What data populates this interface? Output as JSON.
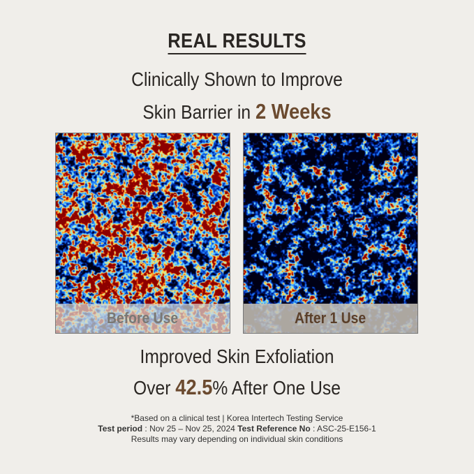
{
  "title": "REAL RESULTS",
  "headline": {
    "line1": "Clinically Shown to Improve",
    "line2_prefix": "Skin Barrier in ",
    "line2_highlight": "2 Weeks"
  },
  "images": {
    "before_label": "Before Use",
    "after_label": "After 1 Use"
  },
  "result": {
    "line1": "Improved Skin Exfoliation",
    "line2_prefix": "Over ",
    "line2_highlight": "42.5",
    "line2_unit": "%",
    "line2_suffix": " After One Use"
  },
  "footnote": {
    "line1": "*Based on a clinical test | Korea Intertech Testing Service",
    "period_label": "Test period",
    "period_value": " : Nov 25 – Nov 25, 2024 ",
    "ref_label": "Test Reference No",
    "ref_value": " : ASC-25-E156-1",
    "line3": "Results may vary depending on individual skin conditions"
  },
  "colors": {
    "accent": "#6b4a2f",
    "background": "#f0eeea"
  }
}
